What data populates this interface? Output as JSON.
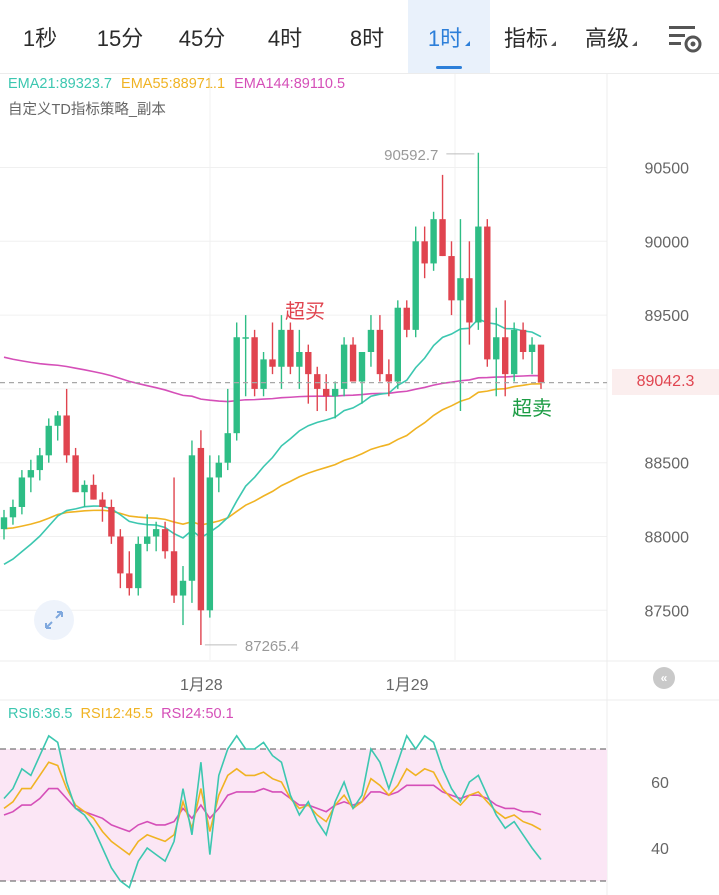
{
  "tabs": [
    {
      "label": "1秒",
      "active": false,
      "dropdown": false
    },
    {
      "label": "15分",
      "active": false,
      "dropdown": false
    },
    {
      "label": "45分",
      "active": false,
      "dropdown": false
    },
    {
      "label": "4时",
      "active": false,
      "dropdown": false
    },
    {
      "label": "8时",
      "active": false,
      "dropdown": false
    },
    {
      "label": "1时",
      "active": true,
      "dropdown": true
    },
    {
      "label": "指标",
      "active": false,
      "dropdown": true
    },
    {
      "label": "高级",
      "active": false,
      "dropdown": true
    }
  ],
  "settings_icon": "chart-settings-icon",
  "colors": {
    "up": "#2ebd85",
    "down": "#e0444f",
    "ema21": "#3cc7b0",
    "ema55": "#f0b323",
    "ema144": "#d54fb8",
    "rsi6": "#3cc7b0",
    "rsi12": "#f0b323",
    "rsi24": "#d54fb8",
    "accent": "#2d7fd9"
  },
  "ema_legend": [
    {
      "text": "EMA21:89323.7",
      "color": "#3cc7b0"
    },
    {
      "text": "EMA55:88971.1",
      "color": "#f0b323"
    },
    {
      "text": "EMA144:89110.5",
      "color": "#d54fb8"
    }
  ],
  "strategy_label": "自定义TD指标策略_副本",
  "rsi_legend": [
    {
      "text": "RSI6:36.5",
      "color": "#3cc7b0"
    },
    {
      "text": "RSI12:45.5",
      "color": "#f0b323"
    },
    {
      "text": "RSI24:50.1",
      "color": "#d54fb8"
    }
  ],
  "current_price": "89042.3",
  "chart_data": {
    "type": "candlestick",
    "interval": "1时",
    "price_axis": {
      "ticks": [
        87500,
        88000,
        88500,
        89000,
        89500,
        90000,
        90500
      ],
      "visible_tick_labels": [
        "87500",
        "88000",
        "88500",
        "89500",
        "90000",
        "90500"
      ],
      "range": [
        87150,
        90700
      ]
    },
    "date_labels": [
      {
        "label": "1月28",
        "index": 14
      },
      {
        "label": "1月29",
        "index": 37
      }
    ],
    "annotations": {
      "max_label": "90592.7",
      "min_label": "87265.4",
      "overbought": "超买",
      "oversold": "超卖"
    },
    "candles": [
      [
        88050,
        88180,
        87980,
        88130
      ],
      [
        88130,
        88250,
        88080,
        88200
      ],
      [
        88200,
        88450,
        88150,
        88400
      ],
      [
        88400,
        88520,
        88300,
        88450
      ],
      [
        88450,
        88600,
        88380,
        88550
      ],
      [
        88550,
        88800,
        88500,
        88750
      ],
      [
        88750,
        88850,
        88650,
        88820
      ],
      [
        88820,
        89000,
        88500,
        88550
      ],
      [
        88550,
        88600,
        88300,
        88300
      ],
      [
        88300,
        88380,
        88200,
        88350
      ],
      [
        88350,
        88420,
        88250,
        88250
      ],
      [
        88250,
        88300,
        88100,
        88200
      ],
      [
        88200,
        88250,
        87950,
        88000
      ],
      [
        88000,
        88050,
        87650,
        87750
      ],
      [
        87750,
        87900,
        87600,
        87650
      ],
      [
        87650,
        88000,
        87600,
        87950
      ],
      [
        87950,
        88150,
        87900,
        88000
      ],
      [
        88000,
        88100,
        87900,
        88050
      ],
      [
        88050,
        88100,
        87850,
        87900
      ],
      [
        87900,
        88400,
        87550,
        87600
      ],
      [
        87600,
        87800,
        87400,
        87700
      ],
      [
        87700,
        88650,
        87550,
        88550
      ],
      [
        88600,
        88720,
        87265,
        87500
      ],
      [
        87500,
        88550,
        87450,
        88400
      ],
      [
        88400,
        88550,
        88300,
        88500
      ],
      [
        88500,
        89000,
        88450,
        88700
      ],
      [
        88700,
        89450,
        88650,
        89350
      ],
      [
        89350,
        89500,
        88950,
        89350
      ],
      [
        89350,
        89400,
        88950,
        89000
      ],
      [
        89000,
        89250,
        88950,
        89200
      ],
      [
        89200,
        89450,
        89100,
        89150
      ],
      [
        89150,
        89500,
        89000,
        89400
      ],
      [
        89400,
        89450,
        89100,
        89150
      ],
      [
        89150,
        89400,
        89000,
        89250
      ],
      [
        89250,
        89300,
        88900,
        89100
      ],
      [
        89100,
        89150,
        88850,
        89000
      ],
      [
        89000,
        89100,
        88850,
        88950
      ],
      [
        88950,
        89050,
        88800,
        89000
      ],
      [
        89000,
        89350,
        88950,
        89300
      ],
      [
        89300,
        89350,
        89050,
        89050
      ],
      [
        89050,
        89250,
        88900,
        89250
      ],
      [
        89250,
        89500,
        89150,
        89400
      ],
      [
        89400,
        89500,
        89050,
        89100
      ],
      [
        89100,
        89200,
        88950,
        89050
      ],
      [
        89050,
        89600,
        89000,
        89550
      ],
      [
        89550,
        89600,
        89350,
        89400
      ],
      [
        89400,
        90100,
        89350,
        90000
      ],
      [
        90000,
        90100,
        89750,
        89850
      ],
      [
        89850,
        90200,
        89800,
        90150
      ],
      [
        90150,
        90450,
        89900,
        89900
      ],
      [
        89900,
        90000,
        89500,
        89600
      ],
      [
        89600,
        90150,
        88850,
        89750
      ],
      [
        89750,
        90000,
        89300,
        89450
      ],
      [
        89450,
        90600,
        89400,
        90100
      ],
      [
        90100,
        90150,
        89150,
        89200
      ],
      [
        89200,
        89550,
        88950,
        89350
      ],
      [
        89350,
        89600,
        88950,
        89100
      ],
      [
        89100,
        89450,
        89050,
        89400
      ],
      [
        89400,
        89450,
        89200,
        89250
      ],
      [
        89250,
        89350,
        89100,
        89300
      ],
      [
        89300,
        89300,
        89000,
        89042.3
      ]
    ],
    "rsi": {
      "axis_ticks": [
        40,
        60
      ],
      "overbought": 70,
      "oversold": 30,
      "rsi6": [
        55,
        58,
        64,
        62,
        68,
        74,
        72,
        60,
        52,
        50,
        46,
        40,
        34,
        30,
        28,
        36,
        40,
        38,
        36,
        42,
        58,
        44,
        66,
        38,
        62,
        70,
        74,
        70,
        70,
        72,
        68,
        66,
        56,
        50,
        54,
        48,
        44,
        54,
        60,
        52,
        56,
        70,
        66,
        58,
        66,
        74,
        70,
        74,
        72,
        64,
        58,
        54,
        60,
        62,
        56,
        50,
        46,
        48,
        44,
        40,
        36.5
      ],
      "rsi12": [
        52,
        54,
        58,
        58,
        62,
        66,
        65,
        58,
        53,
        51,
        49,
        45,
        42,
        40,
        38,
        42,
        44,
        43,
        42,
        44,
        54,
        46,
        58,
        45,
        56,
        62,
        64,
        62,
        62,
        63,
        61,
        60,
        55,
        52,
        53,
        50,
        48,
        53,
        56,
        52,
        54,
        61,
        59,
        56,
        59,
        64,
        62,
        64,
        63,
        58,
        55,
        53,
        56,
        57,
        54,
        51,
        49,
        50,
        48,
        47,
        45.5
      ],
      "rsi24": [
        50,
        51,
        53,
        53,
        55,
        58,
        58,
        55,
        52,
        51,
        50,
        49,
        47,
        46,
        45,
        47,
        48,
        47,
        47,
        48,
        52,
        49,
        53,
        49,
        52,
        56,
        57,
        57,
        57,
        58,
        57,
        57,
        55,
        53,
        53,
        52,
        51,
        53,
        54,
        53,
        54,
        57,
        57,
        56,
        57,
        59,
        59,
        59,
        59,
        57,
        56,
        55,
        56,
        56,
        55,
        53,
        52,
        52,
        51,
        51,
        50.1
      ]
    }
  }
}
